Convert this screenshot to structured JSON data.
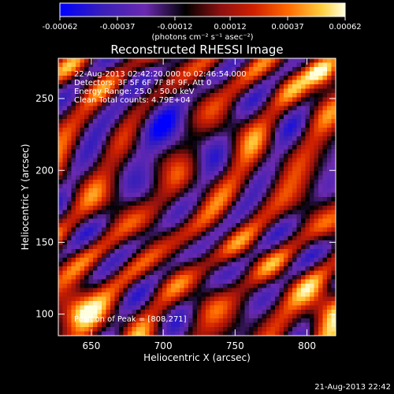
{
  "chart_data": {
    "type": "heatmap",
    "title": "Reconstructed RHESSI Image",
    "xlabel": "Heliocentric X (arcsec)",
    "ylabel": "Heliocentric Y (arcsec)",
    "xlim": [
      627,
      820
    ],
    "ylim": [
      85,
      278
    ],
    "x_ticks": [
      650,
      700,
      750,
      800
    ],
    "y_ticks": [
      100,
      150,
      200,
      250
    ],
    "colorbar": {
      "min": -0.00062,
      "max": 0.00062,
      "tick_values": [
        -0.00062,
        -0.00037,
        -0.00012,
        0.00012,
        0.00037,
        0.00062
      ],
      "tick_labels": [
        "-0.00062",
        "-0.00037",
        "-0.00012",
        "0.00012",
        "0.00037",
        "0.00062"
      ],
      "units_label": "(photons cm⁻² s⁻¹ asec⁻²)",
      "colormap": [
        "#0000ff",
        "#3a1fb8",
        "#6a2ab0",
        "#000000",
        "#8a1010",
        "#d02000",
        "#ff6a00",
        "#ffd040",
        "#ffffe0"
      ]
    },
    "annotations": [
      "22-Aug-2013 02:42:20.000 to 02:46:54.000",
      "Detectors: 3F 5F 6F 7F 8F 9F, Att 0",
      "Energy Range: 25.0 - 50.0 keV",
      "Clean     Total counts: 4.79E+04"
    ],
    "peak_label": "Position of Peak = [808,271]",
    "peak": [
      808,
      271
    ],
    "timestamp": "21-Aug-2013 22:42",
    "grid": false
  }
}
